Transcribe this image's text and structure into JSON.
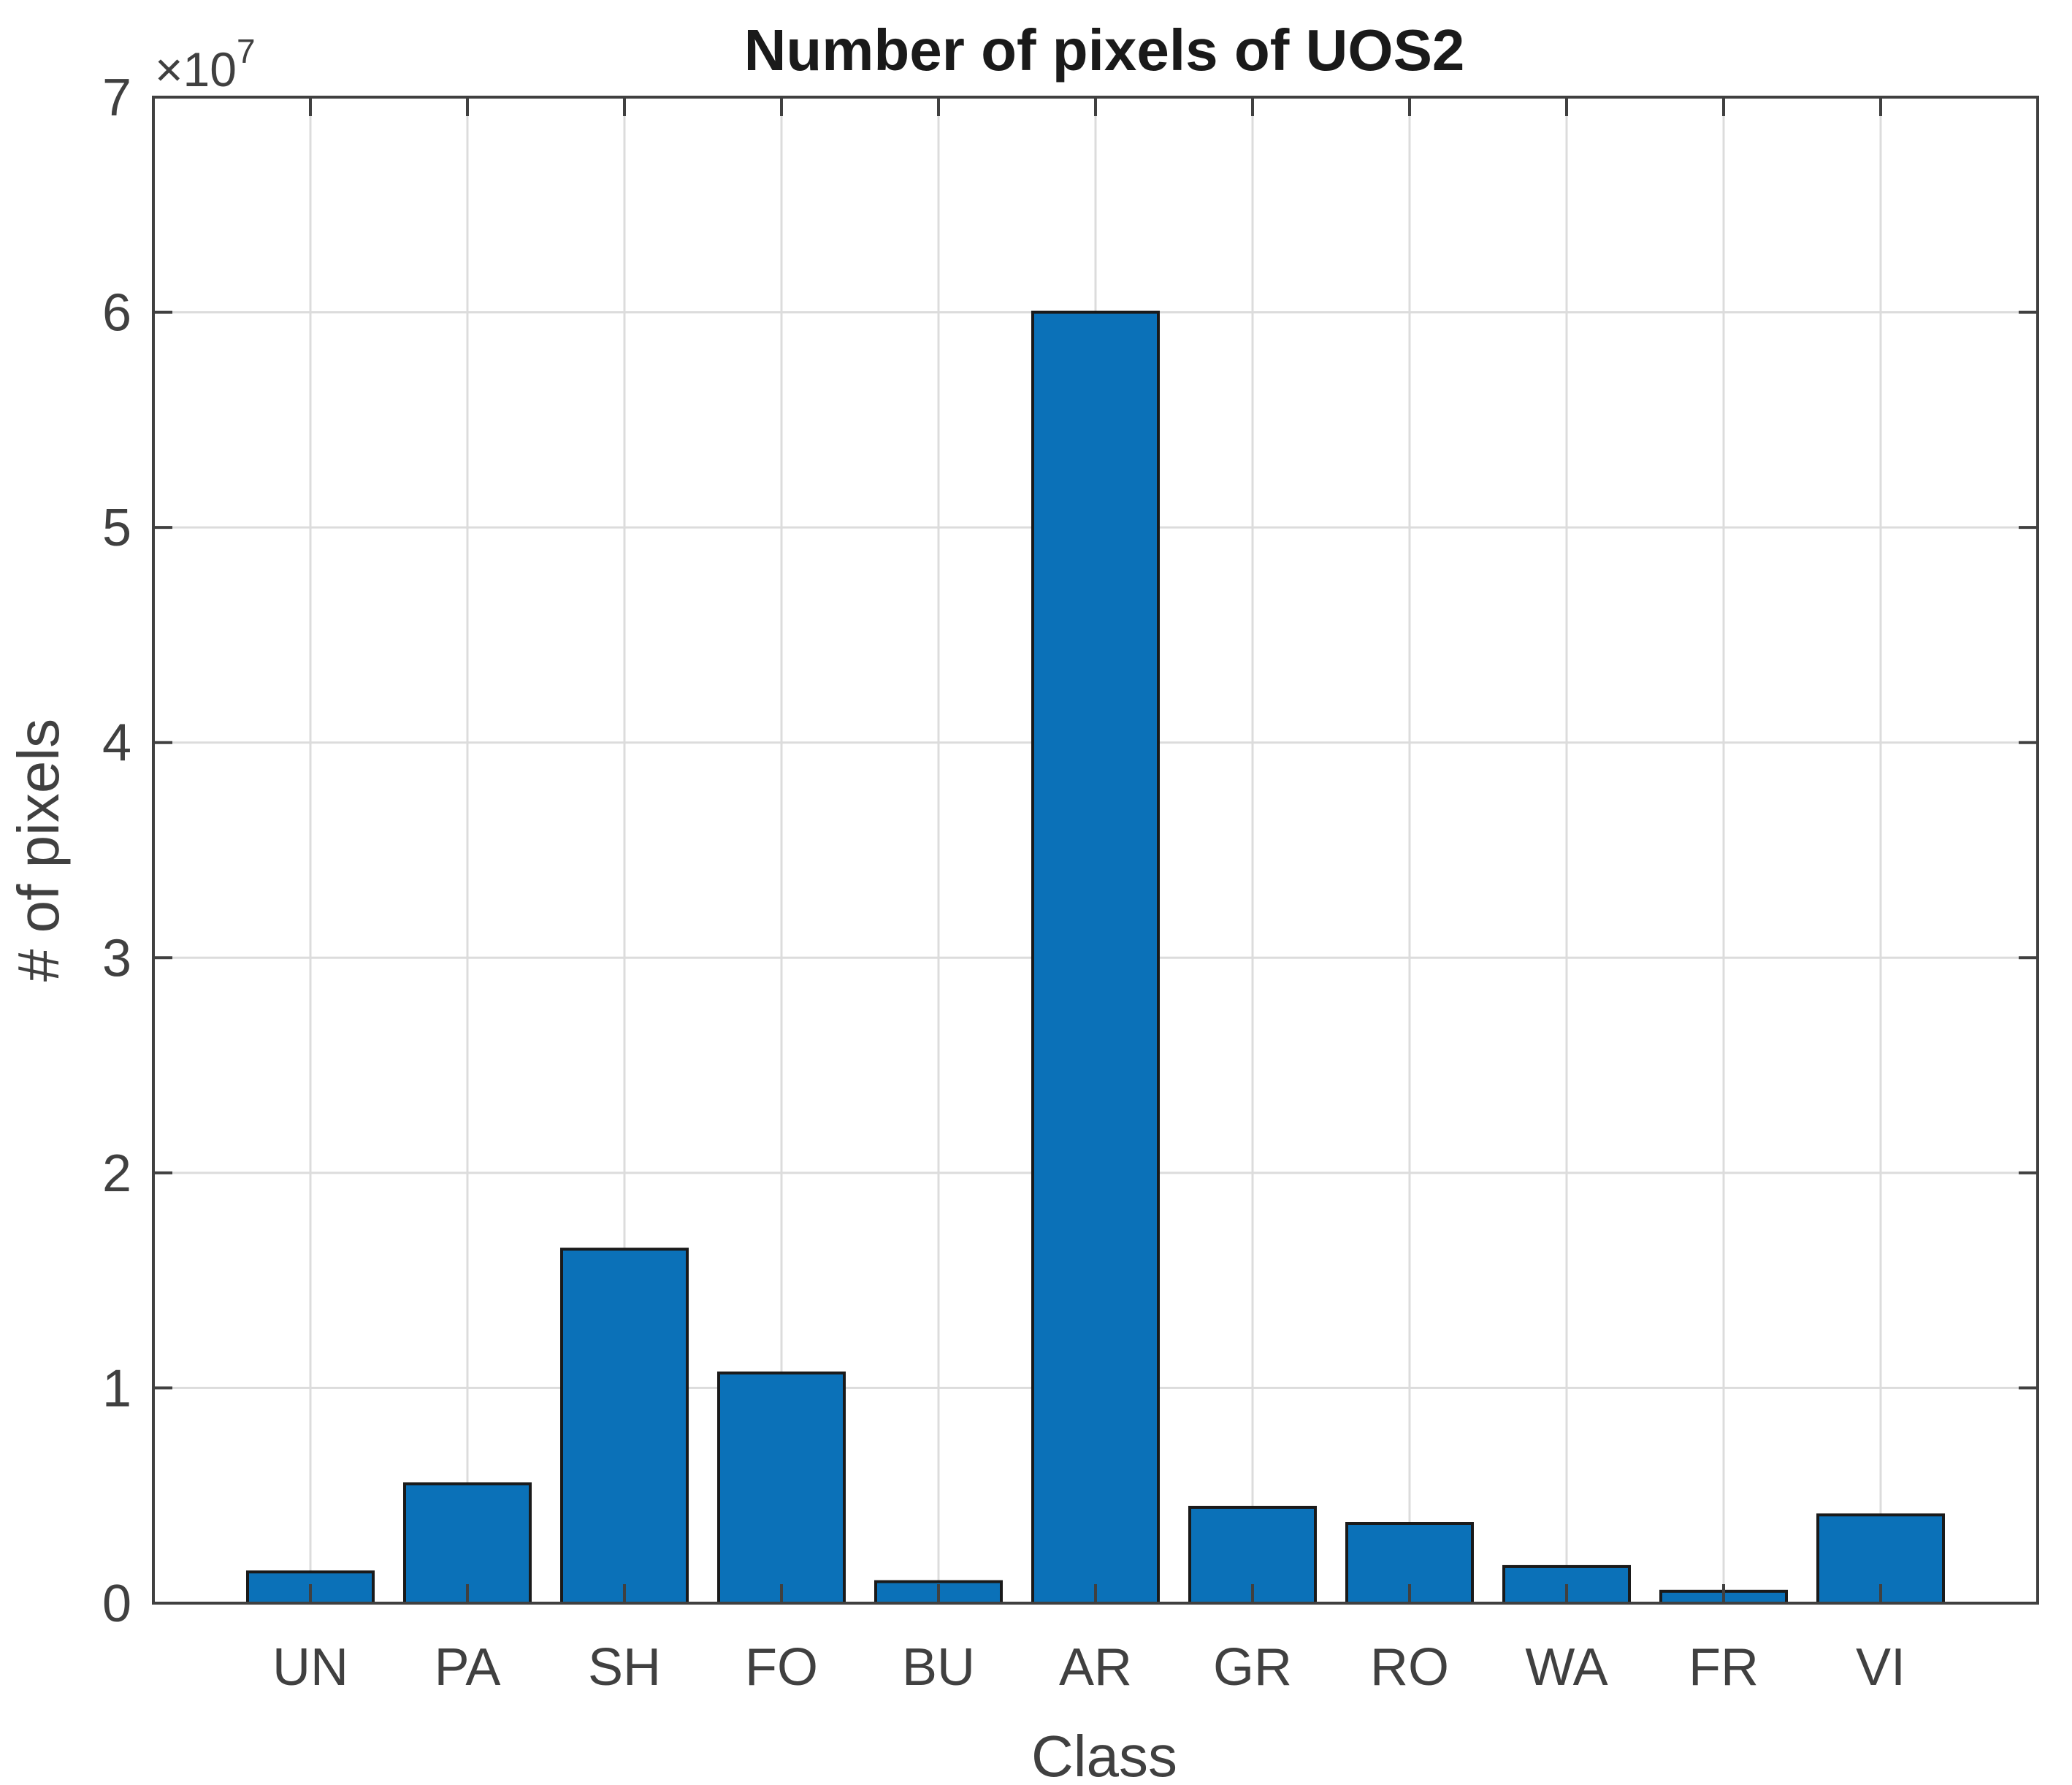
{
  "chart_data": {
    "type": "bar",
    "title": "Number of pixels of UOS2",
    "xlabel": "Class",
    "ylabel": "# of pixels",
    "categories": [
      "UN",
      "PA",
      "SH",
      "FO",
      "BU",
      "AR",
      "GR",
      "RO",
      "WA",
      "FR",
      "VI"
    ],
    "values": [
      1450000,
      5550000,
      16450000,
      10700000,
      1000000,
      60000000,
      4450000,
      3700000,
      1700000,
      550000,
      4100000
    ],
    "ylim": [
      0,
      70000000
    ],
    "yticks": [
      0,
      10000000,
      20000000,
      30000000,
      40000000,
      50000000,
      60000000,
      70000000
    ],
    "ytick_labels": [
      "0",
      "1",
      "2",
      "3",
      "4",
      "5",
      "6",
      "7"
    ],
    "y_exponent_base": "×10",
    "y_exponent_power": "7",
    "grid": true,
    "bar_color": "#0b71b8",
    "bar_edge_color": "#1a1a1a",
    "grid_color": "#dcdcdc",
    "axis_color": "#404040"
  }
}
